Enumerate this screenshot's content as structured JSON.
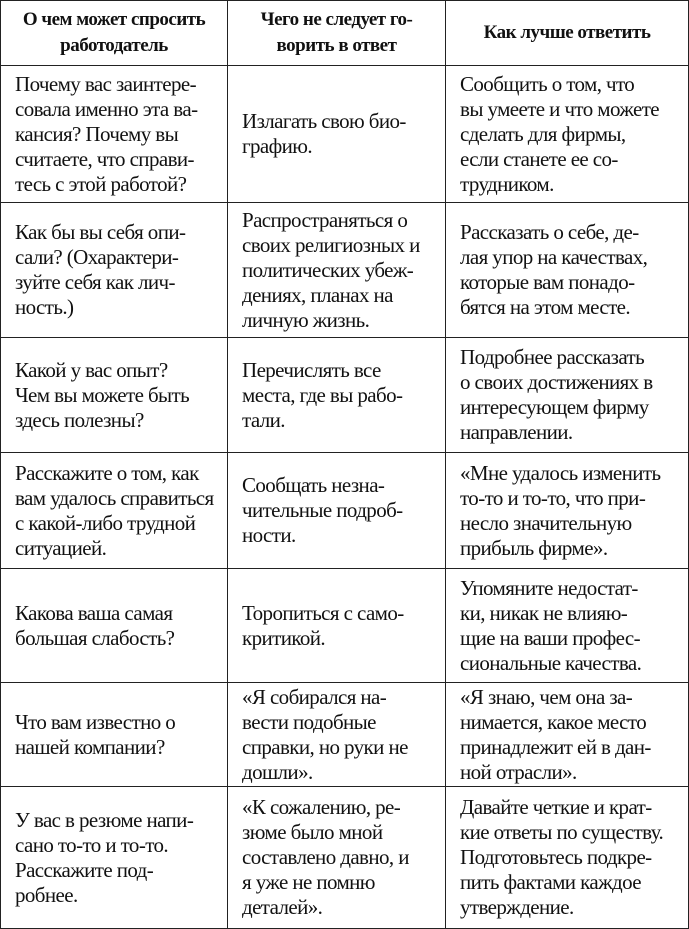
{
  "header": [
    [
      "О чем может спросить",
      "работодатель"
    ],
    [
      "Чего не следует го-",
      "ворить в ответ"
    ],
    [
      "Как лучше ответить"
    ]
  ],
  "rows": [
    [
      [
        "Почему вас заинтере-",
        "совала именно эта ва-",
        "кансия? Почему вы",
        "считаете, что справи-",
        "тесь с этой работой?"
      ],
      [
        "Излагать свою био-",
        "графию."
      ],
      [
        "Сообщить о том, что",
        "вы умеете и что можете",
        "сделать для фирмы,",
        "если станете ее со-",
        "трудником."
      ]
    ],
    [
      [
        "Как бы вы себя опи-",
        "сали? (Охарактери-",
        "зуйте себя как лич-",
        "ность.)"
      ],
      [
        "Распространяться о",
        "своих религиозных и",
        "политических убеж-",
        "дениях, планах на",
        "личную жизнь."
      ],
      [
        "Рассказать о себе, де-",
        "лая упор на качествах,",
        "которые вам понадо-",
        "бятся на этом месте."
      ]
    ],
    [
      [
        "Какой у вас опыт?",
        "Чем вы можете быть",
        "здесь полезны?"
      ],
      [
        "Перечислять все",
        "места, где вы рабо-",
        "тали."
      ],
      [
        "Подробнее рассказать",
        "о своих достижениях в",
        "интересующем фирму",
        "направлении."
      ]
    ],
    [
      [
        "Расскажите о том, как",
        "вам удалось справиться",
        "с какой-либо трудной",
        "ситуацией."
      ],
      [
        "Сообщать незна-",
        "чительные подроб-",
        "ности."
      ],
      [
        "«Мне удалось изменить",
        "то-то и то-то, что при-",
        "несло значительную",
        "прибыль фирме»."
      ]
    ],
    [
      [
        "Какова ваша самая",
        "большая слабость?"
      ],
      [
        "Торопиться с само-",
        "критикой."
      ],
      [
        "Упомяните недостат-",
        "ки, никак не влияю-",
        "щие на ваши профес-",
        "сиональные качества."
      ]
    ],
    [
      [
        "Что вам известно о",
        "нашей компании?"
      ],
      [
        "«Я собирался на-",
        "вести подобные",
        "справки, но руки не",
        "дошли»."
      ],
      [
        "«Я знаю, чем она за-",
        "нимается, какое место",
        "принадлежит ей в дан-",
        "ной отрасли»."
      ]
    ],
    [
      [
        "У вас в резюме напи-",
        "сано то-то и то-то.",
        "Расскажите под-",
        "робнее."
      ],
      [
        "«К сожалению, ре-",
        "зюме было мной",
        "составлено давно, и",
        "я уже не помню",
        "деталей»."
      ],
      [
        "Давайте четкие и крат-",
        "кие ответы по существу.",
        "Подготовьтесь подкре-",
        "пить фактами каждое",
        "утверждение."
      ]
    ]
  ]
}
